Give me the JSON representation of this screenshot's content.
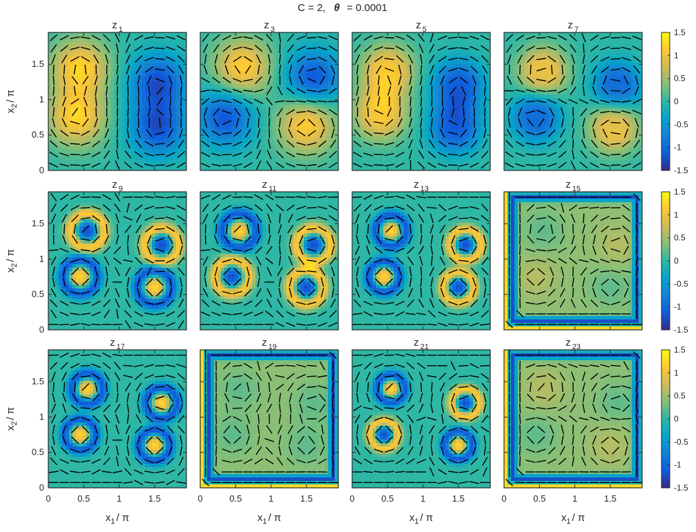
{
  "figure": {
    "title_prefix": "C = 2,",
    "title_symbol": "θ",
    "title_suffix": "= 0.0001"
  },
  "chart_data": {
    "type": "heatmap",
    "grid": {
      "rows": 3,
      "cols": 4
    },
    "xlabel": {
      "main": "x",
      "sub": "1",
      "tail": "/ π"
    },
    "ylabel": {
      "main": "x",
      "sub": "2",
      "tail": "/ π"
    },
    "xlim": [
      0,
      2
    ],
    "ylim": [
      0,
      2
    ],
    "xticks": [
      "0",
      "0.5",
      "1",
      "1.5"
    ],
    "yticks": [
      "0",
      "0.5",
      "1",
      "1.5"
    ],
    "colorbar": {
      "range": [
        -1.5,
        1.5
      ],
      "ticks": [
        "1.5",
        "1",
        "0.5",
        "0",
        "-0.5",
        "-1",
        "-1.5"
      ]
    },
    "colormap": [
      "#352a87",
      "#0f5cdd",
      "#1481d6",
      "#06a4ca",
      "#2eb7a4",
      "#87bf77",
      "#d1bb59",
      "#fec832",
      "#f9fb0e"
    ],
    "quiver_color": "#000000",
    "panels": [
      {
        "label": "z",
        "sub": "1",
        "type": "quad",
        "amp": 1.4,
        "sigma": 0.28,
        "hole": 0.0,
        "blobs": [
          [
            0.45,
            1.45,
            1
          ],
          [
            1.55,
            1.25,
            -1
          ],
          [
            0.4,
            0.75,
            1
          ],
          [
            1.55,
            0.6,
            -1
          ]
        ]
      },
      {
        "label": "z",
        "sub": "3",
        "type": "quad",
        "amp": 1.4,
        "sigma": 0.28,
        "hole": 0.0,
        "blobs": [
          [
            0.6,
            1.45,
            1
          ],
          [
            1.6,
            1.3,
            -1
          ],
          [
            0.35,
            0.75,
            -1
          ],
          [
            1.5,
            0.65,
            1
          ]
        ]
      },
      {
        "label": "z",
        "sub": "5",
        "type": "quad",
        "amp": 1.6,
        "sigma": 0.24,
        "hole": 0.35,
        "blobs": [
          [
            0.5,
            1.4,
            1
          ],
          [
            1.5,
            1.2,
            -1
          ],
          [
            0.4,
            0.8,
            1
          ],
          [
            1.45,
            0.6,
            -1
          ]
        ]
      },
      {
        "label": "z",
        "sub": "7",
        "type": "quad",
        "amp": 1.6,
        "sigma": 0.22,
        "hole": 0.5,
        "blobs": [
          [
            0.55,
            1.4,
            1
          ],
          [
            1.6,
            1.2,
            -1
          ],
          [
            0.45,
            0.75,
            -1
          ],
          [
            1.55,
            0.6,
            1
          ]
        ]
      },
      {
        "label": "z",
        "sub": "9",
        "type": "ring",
        "amp": 1.6,
        "sigma": 0.22,
        "hole": 0.0,
        "blobs": [
          [
            0.55,
            1.4,
            1
          ],
          [
            1.6,
            1.2,
            1
          ],
          [
            0.45,
            0.75,
            -1
          ],
          [
            1.5,
            0.6,
            -1
          ]
        ]
      },
      {
        "label": "z",
        "sub": "11",
        "type": "ring",
        "amp": 1.6,
        "sigma": 0.22,
        "hole": 0.0,
        "blobs": [
          [
            0.55,
            1.4,
            -1
          ],
          [
            1.6,
            1.2,
            1
          ],
          [
            0.45,
            0.75,
            1
          ],
          [
            1.5,
            0.6,
            1
          ]
        ]
      },
      {
        "label": "z",
        "sub": "13",
        "type": "ring",
        "amp": 1.6,
        "sigma": 0.2,
        "hole": 0.0,
        "blobs": [
          [
            0.55,
            1.4,
            -1
          ],
          [
            1.6,
            1.2,
            1
          ],
          [
            0.45,
            0.75,
            -1
          ],
          [
            1.5,
            0.6,
            1
          ]
        ]
      },
      {
        "label": "z",
        "sub": "15",
        "type": "frame",
        "amp": 1.6,
        "sigma": 0.2,
        "hole": 0.0,
        "blobs": [
          [
            0.55,
            1.4,
            -1
          ],
          [
            1.6,
            1.2,
            1
          ],
          [
            0.45,
            0.75,
            1
          ],
          [
            1.5,
            0.6,
            -1
          ]
        ]
      },
      {
        "label": "z",
        "sub": "17",
        "type": "ring",
        "amp": 1.6,
        "sigma": 0.2,
        "hole": 0.0,
        "blobs": [
          [
            0.55,
            1.4,
            -1
          ],
          [
            1.6,
            1.2,
            -1
          ],
          [
            0.45,
            0.75,
            -1
          ],
          [
            1.5,
            0.6,
            -1
          ]
        ]
      },
      {
        "label": "z",
        "sub": "19",
        "type": "frame",
        "amp": 1.6,
        "sigma": 0.2,
        "hole": 0.0,
        "blobs": [
          [
            0.55,
            1.4,
            -1
          ],
          [
            1.6,
            1.2,
            -1
          ],
          [
            0.45,
            0.75,
            -1
          ],
          [
            1.5,
            0.6,
            -1
          ]
        ]
      },
      {
        "label": "z",
        "sub": "21",
        "type": "ring",
        "amp": 1.6,
        "sigma": 0.18,
        "hole": 0.0,
        "blobs": [
          [
            0.55,
            1.4,
            -1
          ],
          [
            1.6,
            1.2,
            1
          ],
          [
            0.45,
            0.75,
            1
          ],
          [
            1.5,
            0.6,
            -1
          ]
        ]
      },
      {
        "label": "z",
        "sub": "23",
        "type": "frame",
        "amp": 1.6,
        "sigma": 0.2,
        "hole": 0.0,
        "blobs": [
          [
            0.55,
            1.4,
            1
          ],
          [
            1.6,
            1.2,
            -1
          ],
          [
            0.45,
            0.75,
            -1
          ],
          [
            1.5,
            0.6,
            1
          ]
        ]
      }
    ]
  }
}
